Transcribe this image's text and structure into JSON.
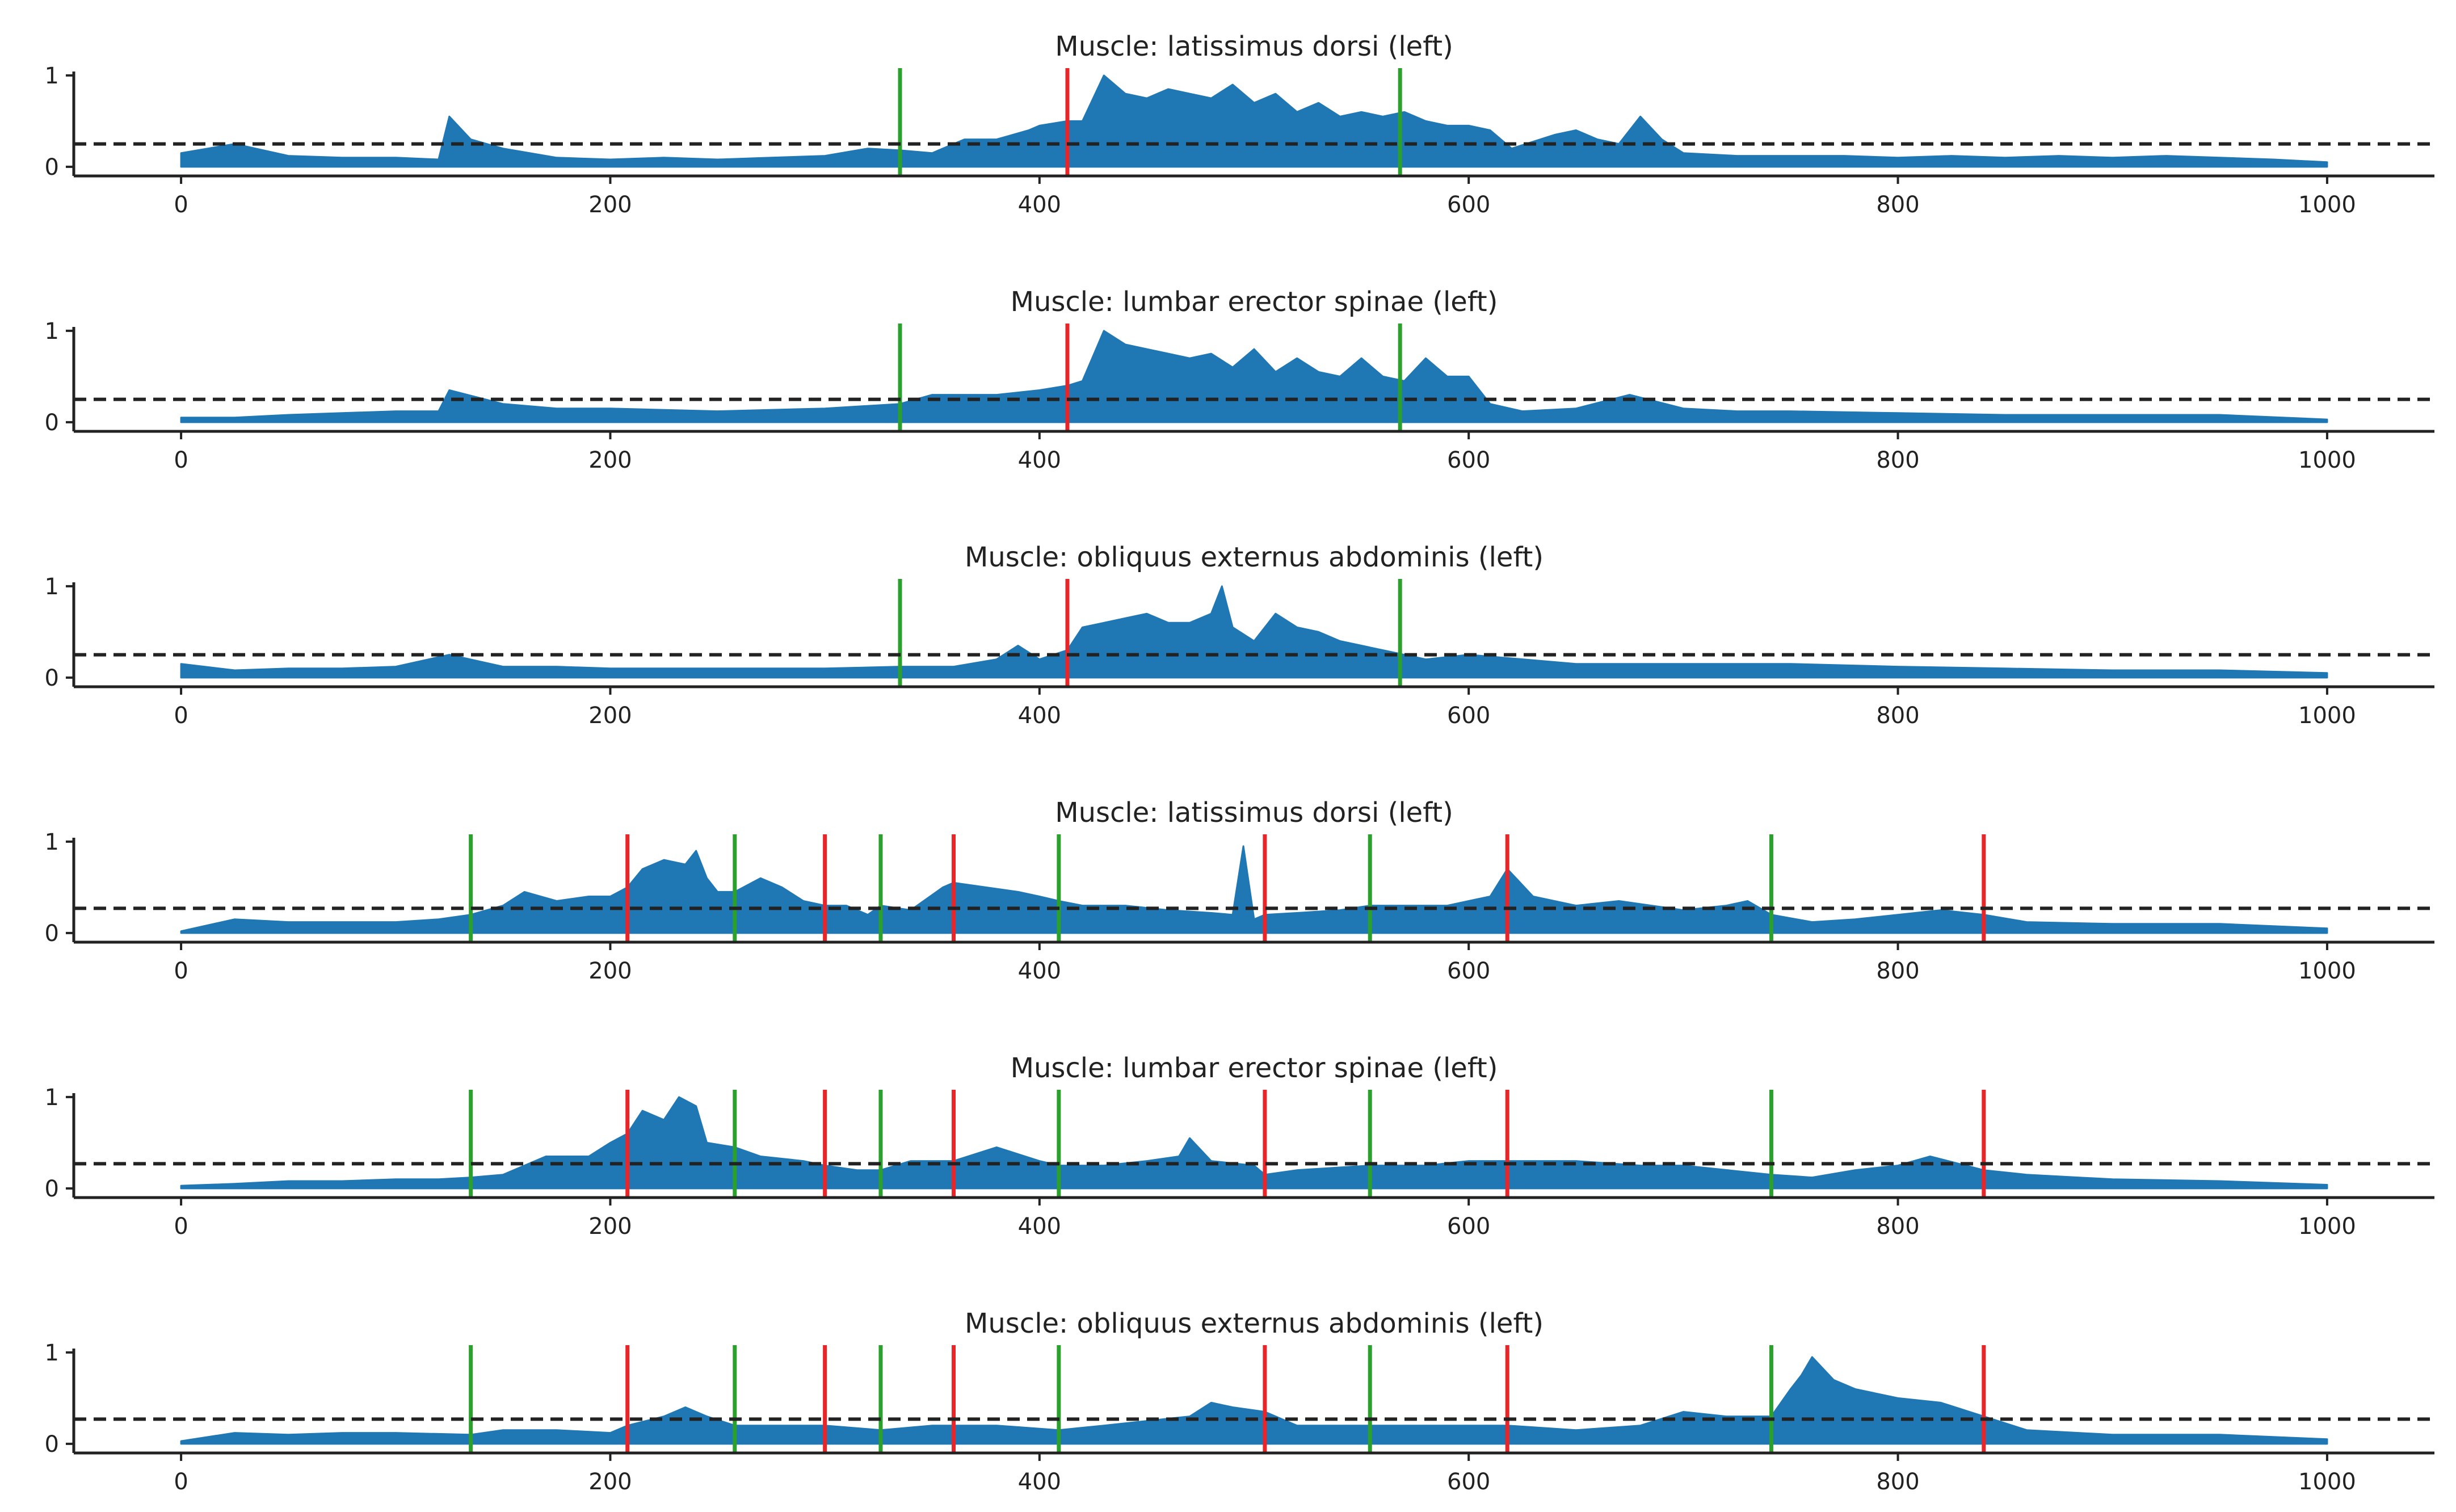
{
  "figure": {
    "background": "#ffffff",
    "fill_color": "#1f77b4",
    "threshold_color": "#222222",
    "onset_color": "#2ca02c",
    "offset_color": "#e8262a"
  },
  "chart_data": [
    {
      "type": "area",
      "title": "Muscle: latissimus dorsi (left)",
      "xlabel": "",
      "ylabel": "",
      "xlim": [
        -50,
        1050
      ],
      "ylim": [
        -0.1,
        1.08
      ],
      "xticks": [
        0,
        200,
        400,
        600,
        800,
        1000
      ],
      "xtick_labels": [
        "0",
        "200",
        "400",
        "600",
        "800",
        "1000"
      ],
      "yticks": [
        0,
        1
      ],
      "ytick_labels": [
        "0",
        "1"
      ],
      "threshold": 0.25,
      "onsets": [
        335,
        568
      ],
      "offsets": [
        413
      ],
      "x": [
        0,
        25,
        50,
        75,
        100,
        120,
        125,
        135,
        150,
        175,
        200,
        225,
        250,
        275,
        300,
        320,
        335,
        350,
        365,
        380,
        395,
        400,
        413,
        420,
        430,
        440,
        450,
        460,
        470,
        480,
        490,
        500,
        510,
        520,
        530,
        540,
        550,
        560,
        570,
        580,
        590,
        600,
        610,
        620,
        640,
        650,
        660,
        670,
        680,
        690,
        700,
        725,
        750,
        775,
        800,
        825,
        850,
        875,
        900,
        925,
        950,
        975,
        1000
      ],
      "y": [
        0.15,
        0.25,
        0.12,
        0.1,
        0.1,
        0.08,
        0.55,
        0.3,
        0.2,
        0.1,
        0.08,
        0.1,
        0.08,
        0.1,
        0.12,
        0.2,
        0.18,
        0.15,
        0.3,
        0.3,
        0.4,
        0.45,
        0.5,
        0.5,
        1.0,
        0.8,
        0.75,
        0.85,
        0.8,
        0.75,
        0.9,
        0.7,
        0.8,
        0.6,
        0.7,
        0.55,
        0.6,
        0.55,
        0.6,
        0.5,
        0.45,
        0.45,
        0.4,
        0.2,
        0.35,
        0.4,
        0.3,
        0.25,
        0.55,
        0.3,
        0.15,
        0.12,
        0.12,
        0.12,
        0.1,
        0.12,
        0.1,
        0.12,
        0.1,
        0.12,
        0.1,
        0.08,
        0.05
      ]
    },
    {
      "type": "area",
      "title": "Muscle: lumbar erector spinae (left)",
      "xlabel": "",
      "ylabel": "",
      "xlim": [
        -50,
        1050
      ],
      "ylim": [
        -0.1,
        1.08
      ],
      "xticks": [
        0,
        200,
        400,
        600,
        800,
        1000
      ],
      "xtick_labels": [
        "0",
        "200",
        "400",
        "600",
        "800",
        "1000"
      ],
      "yticks": [
        0,
        1
      ],
      "ytick_labels": [
        "0",
        "1"
      ],
      "threshold": 0.25,
      "onsets": [
        335,
        568
      ],
      "offsets": [
        413
      ],
      "x": [
        0,
        25,
        50,
        75,
        100,
        120,
        125,
        150,
        175,
        200,
        250,
        300,
        335,
        350,
        380,
        400,
        413,
        420,
        430,
        440,
        450,
        460,
        470,
        480,
        490,
        500,
        510,
        520,
        530,
        540,
        550,
        560,
        570,
        580,
        590,
        600,
        610,
        625,
        650,
        675,
        700,
        725,
        750,
        800,
        850,
        900,
        950,
        1000
      ],
      "y": [
        0.05,
        0.05,
        0.08,
        0.1,
        0.12,
        0.12,
        0.35,
        0.2,
        0.15,
        0.15,
        0.12,
        0.15,
        0.2,
        0.3,
        0.3,
        0.35,
        0.4,
        0.45,
        1.0,
        0.85,
        0.8,
        0.75,
        0.7,
        0.75,
        0.6,
        0.8,
        0.55,
        0.7,
        0.55,
        0.5,
        0.7,
        0.5,
        0.45,
        0.7,
        0.5,
        0.5,
        0.2,
        0.12,
        0.15,
        0.3,
        0.15,
        0.12,
        0.12,
        0.1,
        0.08,
        0.08,
        0.08,
        0.03
      ]
    },
    {
      "type": "area",
      "title": "Muscle: obliquus externus abdominis (left)",
      "xlabel": "",
      "ylabel": "",
      "xlim": [
        -50,
        1050
      ],
      "ylim": [
        -0.1,
        1.08
      ],
      "xticks": [
        0,
        200,
        400,
        600,
        800,
        1000
      ],
      "xtick_labels": [
        "0",
        "200",
        "400",
        "600",
        "800",
        "1000"
      ],
      "yticks": [
        0,
        1
      ],
      "ytick_labels": [
        "0",
        "1"
      ],
      "threshold": 0.25,
      "onsets": [
        335,
        568
      ],
      "offsets": [
        413
      ],
      "x": [
        0,
        25,
        50,
        75,
        100,
        125,
        150,
        175,
        200,
        250,
        300,
        335,
        360,
        380,
        390,
        400,
        413,
        420,
        430,
        440,
        450,
        460,
        470,
        480,
        485,
        490,
        500,
        510,
        520,
        530,
        540,
        550,
        560,
        570,
        580,
        600,
        650,
        700,
        750,
        800,
        850,
        900,
        950,
        1000
      ],
      "y": [
        0.15,
        0.08,
        0.1,
        0.1,
        0.12,
        0.25,
        0.12,
        0.12,
        0.1,
        0.1,
        0.1,
        0.12,
        0.12,
        0.2,
        0.35,
        0.2,
        0.3,
        0.55,
        0.6,
        0.65,
        0.7,
        0.6,
        0.6,
        0.7,
        1.0,
        0.55,
        0.4,
        0.7,
        0.55,
        0.5,
        0.4,
        0.35,
        0.3,
        0.25,
        0.2,
        0.25,
        0.15,
        0.15,
        0.15,
        0.12,
        0.1,
        0.08,
        0.08,
        0.05
      ]
    },
    {
      "type": "area",
      "title": "Muscle: latissimus dorsi (left)",
      "xlabel": "",
      "ylabel": "",
      "xlim": [
        -50,
        1050
      ],
      "ylim": [
        -0.1,
        1.08
      ],
      "xticks": [
        0,
        200,
        400,
        600,
        800,
        1000
      ],
      "xtick_labels": [
        "0",
        "200",
        "400",
        "600",
        "800",
        "1000"
      ],
      "yticks": [
        0,
        1
      ],
      "ytick_labels": [
        "0",
        "1"
      ],
      "threshold": 0.27,
      "onsets": [
        135,
        258,
        326,
        409,
        554,
        741
      ],
      "offsets": [
        208,
        300,
        360,
        505,
        618,
        840
      ],
      "x": [
        0,
        25,
        50,
        75,
        100,
        120,
        135,
        150,
        160,
        175,
        190,
        200,
        208,
        215,
        225,
        235,
        240,
        245,
        250,
        258,
        270,
        280,
        290,
        300,
        310,
        320,
        326,
        340,
        355,
        360,
        375,
        390,
        400,
        409,
        420,
        440,
        460,
        480,
        490,
        495,
        500,
        505,
        520,
        540,
        554,
        570,
        590,
        600,
        610,
        618,
        630,
        650,
        670,
        700,
        720,
        730,
        741,
        760,
        780,
        800,
        820,
        840,
        860,
        900,
        950,
        1000
      ],
      "y": [
        0.02,
        0.15,
        0.12,
        0.12,
        0.12,
        0.15,
        0.2,
        0.3,
        0.45,
        0.35,
        0.4,
        0.4,
        0.5,
        0.7,
        0.8,
        0.75,
        0.9,
        0.6,
        0.45,
        0.45,
        0.6,
        0.5,
        0.35,
        0.3,
        0.3,
        0.2,
        0.3,
        0.25,
        0.5,
        0.55,
        0.5,
        0.45,
        0.4,
        0.35,
        0.3,
        0.3,
        0.25,
        0.22,
        0.2,
        0.95,
        0.15,
        0.2,
        0.22,
        0.25,
        0.3,
        0.3,
        0.3,
        0.35,
        0.4,
        0.7,
        0.4,
        0.3,
        0.35,
        0.25,
        0.3,
        0.35,
        0.2,
        0.12,
        0.15,
        0.2,
        0.25,
        0.2,
        0.12,
        0.1,
        0.1,
        0.05
      ]
    },
    {
      "type": "area",
      "title": "Muscle: lumbar erector spinae (left)",
      "xlabel": "",
      "ylabel": "",
      "xlim": [
        -50,
        1050
      ],
      "ylim": [
        -0.1,
        1.08
      ],
      "xticks": [
        0,
        200,
        400,
        600,
        800,
        1000
      ],
      "xtick_labels": [
        "0",
        "200",
        "400",
        "600",
        "800",
        "1000"
      ],
      "yticks": [
        0,
        1
      ],
      "ytick_labels": [
        "0",
        "1"
      ],
      "threshold": 0.27,
      "onsets": [
        135,
        258,
        326,
        409,
        554,
        741
      ],
      "offsets": [
        208,
        300,
        360,
        505,
        618,
        840
      ],
      "x": [
        0,
        25,
        50,
        75,
        100,
        120,
        135,
        150,
        170,
        190,
        200,
        208,
        215,
        225,
        232,
        240,
        245,
        258,
        270,
        290,
        300,
        315,
        326,
        340,
        360,
        380,
        400,
        409,
        430,
        450,
        465,
        470,
        480,
        500,
        505,
        520,
        554,
        580,
        600,
        618,
        650,
        680,
        700,
        741,
        760,
        780,
        800,
        815,
        840,
        860,
        900,
        950,
        1000
      ],
      "y": [
        0.03,
        0.05,
        0.08,
        0.08,
        0.1,
        0.1,
        0.12,
        0.15,
        0.35,
        0.35,
        0.5,
        0.6,
        0.85,
        0.75,
        1.0,
        0.9,
        0.5,
        0.45,
        0.35,
        0.3,
        0.25,
        0.2,
        0.2,
        0.3,
        0.3,
        0.45,
        0.3,
        0.25,
        0.25,
        0.3,
        0.35,
        0.55,
        0.3,
        0.25,
        0.15,
        0.2,
        0.25,
        0.25,
        0.3,
        0.3,
        0.3,
        0.25,
        0.25,
        0.15,
        0.12,
        0.2,
        0.25,
        0.35,
        0.2,
        0.15,
        0.1,
        0.08,
        0.04
      ]
    },
    {
      "type": "area",
      "title": "Muscle: obliquus externus abdominis (left)",
      "xlabel": "",
      "ylabel": "",
      "xlim": [
        -50,
        1050
      ],
      "ylim": [
        -0.1,
        1.08
      ],
      "xticks": [
        0,
        200,
        400,
        600,
        800,
        1000
      ],
      "xtick_labels": [
        "0",
        "200",
        "400",
        "600",
        "800",
        "1000"
      ],
      "yticks": [
        0,
        1
      ],
      "ytick_labels": [
        "0",
        "1"
      ],
      "threshold": 0.27,
      "onsets": [
        135,
        258,
        326,
        409,
        554,
        741
      ],
      "offsets": [
        208,
        300,
        360,
        505,
        618,
        840
      ],
      "x": [
        0,
        25,
        50,
        75,
        100,
        135,
        150,
        175,
        200,
        208,
        225,
        235,
        245,
        258,
        280,
        300,
        326,
        350,
        380,
        409,
        430,
        450,
        470,
        480,
        490,
        505,
        520,
        554,
        580,
        600,
        618,
        650,
        680,
        700,
        720,
        741,
        750,
        755,
        760,
        770,
        780,
        800,
        820,
        840,
        860,
        900,
        950,
        1000
      ],
      "y": [
        0.03,
        0.12,
        0.1,
        0.12,
        0.12,
        0.1,
        0.15,
        0.15,
        0.12,
        0.2,
        0.3,
        0.4,
        0.3,
        0.2,
        0.2,
        0.2,
        0.15,
        0.2,
        0.2,
        0.15,
        0.2,
        0.25,
        0.3,
        0.45,
        0.4,
        0.35,
        0.2,
        0.2,
        0.2,
        0.2,
        0.2,
        0.15,
        0.2,
        0.35,
        0.3,
        0.3,
        0.6,
        0.75,
        0.95,
        0.7,
        0.6,
        0.5,
        0.45,
        0.3,
        0.15,
        0.1,
        0.1,
        0.05
      ]
    }
  ]
}
